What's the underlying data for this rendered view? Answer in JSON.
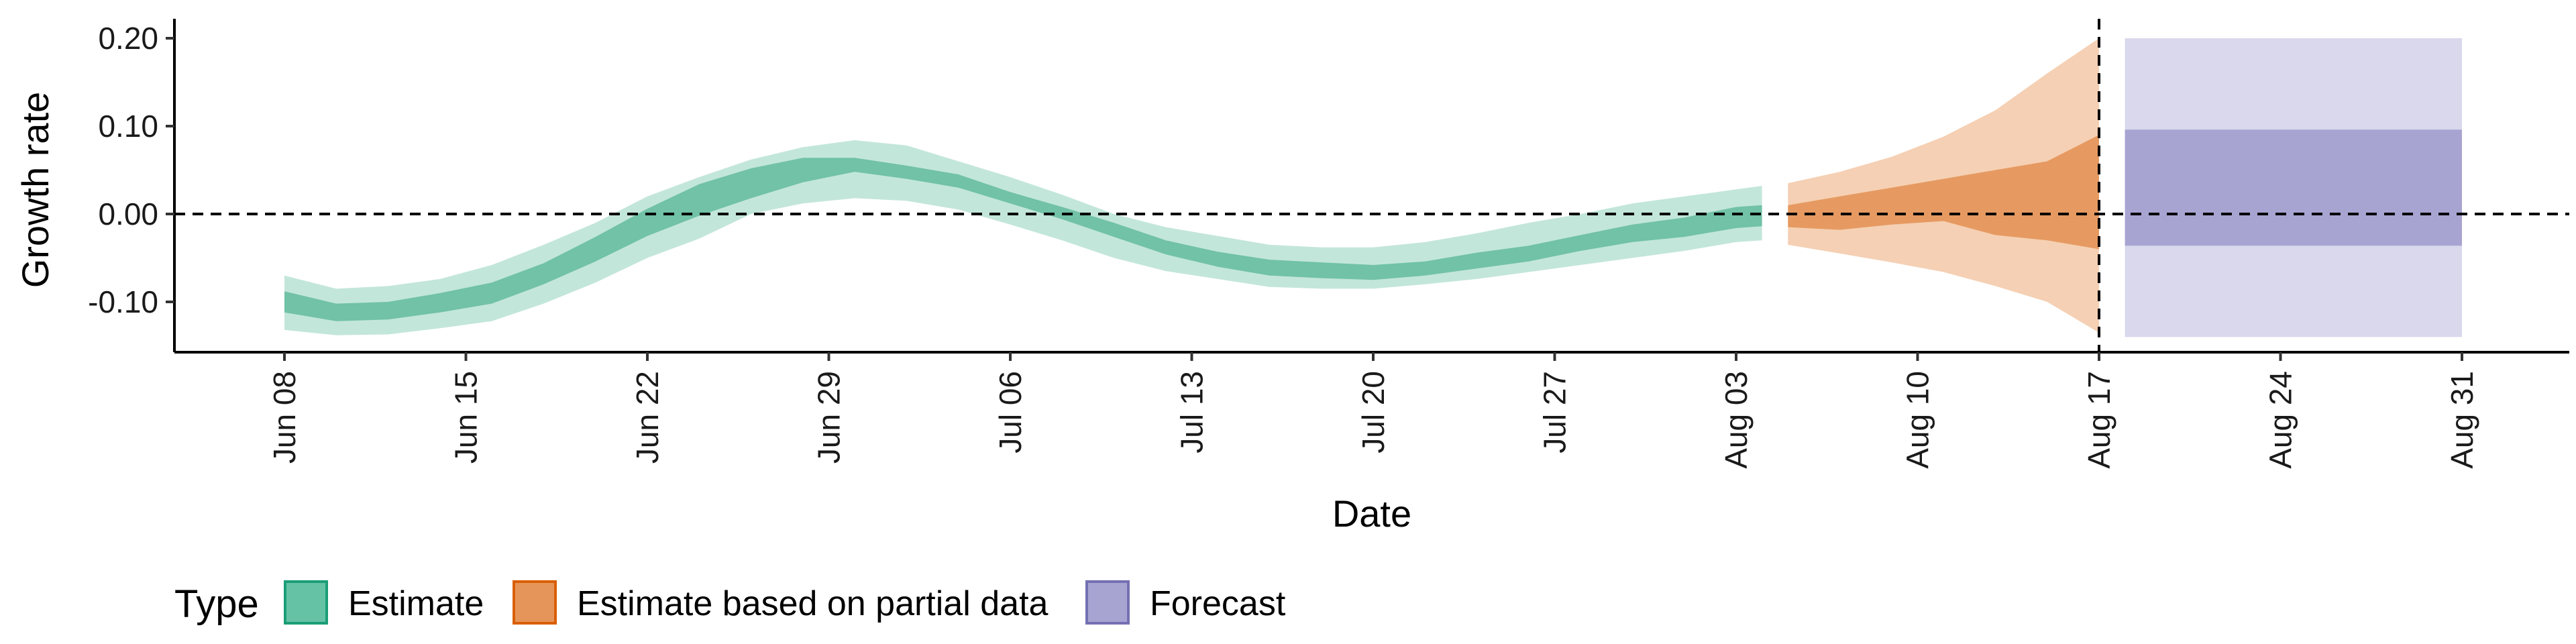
{
  "chart_data": {
    "type": "area",
    "xlabel": "Date",
    "ylabel": "Growth rate",
    "xlim": [
      "2020-06-08",
      "2020-08-31"
    ],
    "ylim": [
      -0.16,
      0.22
    ],
    "x_ticks": [
      "2020-06-08",
      "2020-06-15",
      "2020-06-22",
      "2020-06-29",
      "2020-07-06",
      "2020-07-13",
      "2020-07-20",
      "2020-07-27",
      "2020-08-03",
      "2020-08-10",
      "2020-08-17",
      "2020-08-24",
      "2020-08-31"
    ],
    "x_tick_labels": [
      "Jun 08",
      "Jun 15",
      "Jun 22",
      "Jun 29",
      "Jul 06",
      "Jul 13",
      "Jul 20",
      "Jul 27",
      "Aug 03",
      "Aug 10",
      "Aug 17",
      "Aug 24",
      "Aug 31"
    ],
    "y_ticks": [
      -0.1,
      0.0,
      0.1,
      0.2
    ],
    "y_tick_labels": [
      "-0.10",
      "0.00",
      "0.10",
      "0.20"
    ],
    "reference_lines": {
      "horizontal_y": 0.0,
      "vertical_date": "2020-08-17"
    },
    "grid": false,
    "legend": {
      "title": "Type",
      "position": "bottom-left",
      "items": [
        {
          "label": "Estimate",
          "color": "#66c2a5",
          "border": "#1b9e77"
        },
        {
          "label": "Estimate based on partial data",
          "color": "#e6955a",
          "border": "#d95f02"
        },
        {
          "label": "Forecast",
          "color": "#a8a4d2",
          "border": "#7570b3"
        }
      ]
    },
    "series": [
      {
        "name": "Estimate",
        "outer_color": "#c3e6da",
        "inner_color": "#71c2a6",
        "dates": [
          "2020-06-08",
          "2020-06-10",
          "2020-06-12",
          "2020-06-14",
          "2020-06-16",
          "2020-06-18",
          "2020-06-20",
          "2020-06-22",
          "2020-06-24",
          "2020-06-26",
          "2020-06-28",
          "2020-06-30",
          "2020-07-02",
          "2020-07-04",
          "2020-07-06",
          "2020-07-08",
          "2020-07-10",
          "2020-07-12",
          "2020-07-14",
          "2020-07-16",
          "2020-07-18",
          "2020-07-20",
          "2020-07-22",
          "2020-07-24",
          "2020-07-26",
          "2020-07-28",
          "2020-07-30",
          "2020-08-01",
          "2020-08-03",
          "2020-08-04"
        ],
        "lower_90": [
          -0.132,
          -0.138,
          -0.137,
          -0.13,
          -0.122,
          -0.102,
          -0.078,
          -0.05,
          -0.028,
          0.0,
          0.012,
          0.018,
          0.015,
          0.005,
          -0.012,
          -0.03,
          -0.05,
          -0.065,
          -0.074,
          -0.083,
          -0.085,
          -0.085,
          -0.08,
          -0.074,
          -0.066,
          -0.058,
          -0.05,
          -0.042,
          -0.032,
          -0.03
        ],
        "lower_50": [
          -0.112,
          -0.122,
          -0.12,
          -0.112,
          -0.102,
          -0.08,
          -0.054,
          -0.025,
          -0.002,
          0.018,
          0.036,
          0.048,
          0.04,
          0.03,
          0.012,
          -0.006,
          -0.026,
          -0.046,
          -0.06,
          -0.07,
          -0.073,
          -0.075,
          -0.07,
          -0.062,
          -0.054,
          -0.042,
          -0.032,
          -0.026,
          -0.016,
          -0.014
        ],
        "upper_50": [
          -0.088,
          -0.102,
          -0.1,
          -0.09,
          -0.078,
          -0.056,
          -0.026,
          0.006,
          0.034,
          0.052,
          0.064,
          0.064,
          0.055,
          0.045,
          0.025,
          0.008,
          -0.01,
          -0.03,
          -0.043,
          -0.052,
          -0.055,
          -0.058,
          -0.054,
          -0.044,
          -0.036,
          -0.024,
          -0.012,
          -0.004,
          0.008,
          0.01
        ],
        "upper_90": [
          -0.07,
          -0.085,
          -0.082,
          -0.074,
          -0.058,
          -0.035,
          -0.01,
          0.02,
          0.042,
          0.062,
          0.076,
          0.084,
          0.078,
          0.06,
          0.042,
          0.022,
          0.0,
          -0.015,
          -0.025,
          -0.035,
          -0.038,
          -0.038,
          -0.032,
          -0.022,
          -0.01,
          0.0,
          0.012,
          0.02,
          0.028,
          0.032
        ]
      },
      {
        "name": "Estimate based on partial data",
        "outer_color": "#f5d0b4",
        "inner_color": "#e69a61",
        "dates": [
          "2020-08-05",
          "2020-08-07",
          "2020-08-09",
          "2020-08-11",
          "2020-08-13",
          "2020-08-15",
          "2020-08-17"
        ],
        "lower_90": [
          -0.035,
          -0.045,
          -0.055,
          -0.066,
          -0.082,
          -0.1,
          -0.135
        ],
        "lower_50": [
          -0.015,
          -0.018,
          -0.012,
          -0.008,
          -0.024,
          -0.03,
          -0.04
        ],
        "upper_50": [
          0.01,
          0.02,
          0.03,
          0.04,
          0.05,
          0.06,
          0.09
        ],
        "upper_90": [
          0.035,
          0.048,
          0.065,
          0.088,
          0.118,
          0.16,
          0.2
        ]
      },
      {
        "name": "Forecast",
        "outer_color": "#d9d8ec",
        "inner_color": "#a8a4d2",
        "dates": [
          "2020-08-18",
          "2020-08-31"
        ],
        "lower_90": [
          -0.14,
          -0.14
        ],
        "lower_50": [
          -0.036,
          -0.036
        ],
        "upper_50": [
          0.096,
          0.096
        ],
        "upper_90": [
          0.2,
          0.2
        ]
      }
    ]
  }
}
